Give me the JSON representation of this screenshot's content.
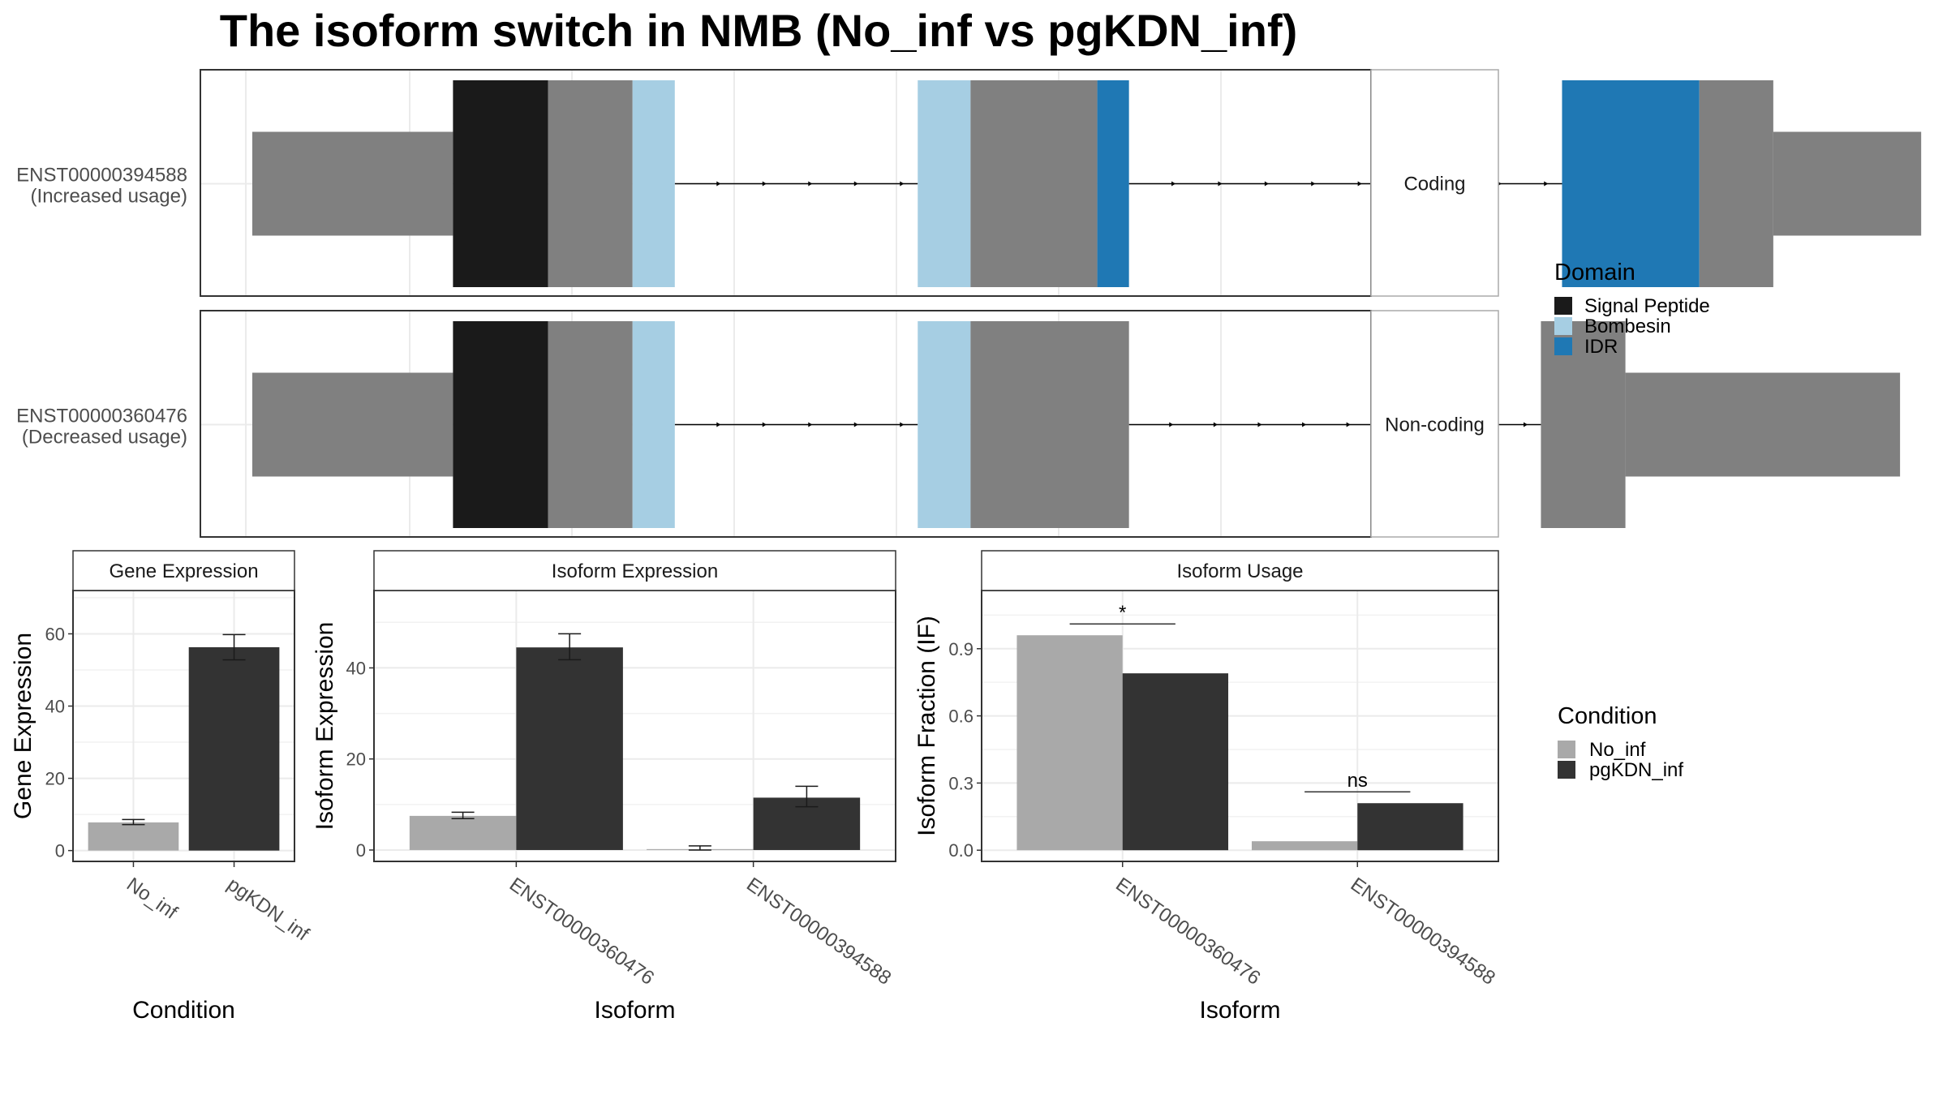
{
  "title": "The isoform switch in NMB (No_inf vs pgKDN_inf)",
  "colors": {
    "exon": "#808080",
    "signal_peptide": "#1a1a1a",
    "bombesin": "#a6cee3",
    "idr": "#1f78b4",
    "no_inf": "#a9a9a9",
    "pgkdn_inf": "#333333"
  },
  "structure": {
    "tracks": [
      {
        "id": "ENST00000394588",
        "label_line1": "ENST00000394588",
        "label_line2": "(Increased usage)",
        "strip": "Coding",
        "exons": [
          {
            "start": 0.0,
            "end": 0.19,
            "coding": false
          },
          {
            "start": 0.19,
            "end": 0.28,
            "coding": true,
            "domain": "signal_peptide"
          },
          {
            "start": 0.28,
            "end": 0.36,
            "coding": true
          },
          {
            "start": 0.36,
            "end": 0.4,
            "coding": true,
            "domain": "bombesin"
          },
          {
            "start": 0.63,
            "end": 0.68,
            "coding": true,
            "domain": "bombesin"
          },
          {
            "start": 0.68,
            "end": 0.8,
            "coding": true
          },
          {
            "start": 0.8,
            "end": 0.83,
            "coding": true,
            "domain": "idr"
          },
          {
            "start": 1.24,
            "end": 1.37,
            "coding": true,
            "domain": "idr"
          },
          {
            "start": 1.37,
            "end": 1.44,
            "coding": true
          },
          {
            "start": 1.44,
            "end": 1.58,
            "coding": false
          }
        ]
      },
      {
        "id": "ENST00000360476",
        "label_line1": "ENST00000360476",
        "label_line2": "(Decreased usage)",
        "strip": "Non-coding",
        "exons": [
          {
            "start": 0.0,
            "end": 0.19,
            "coding": false
          },
          {
            "start": 0.19,
            "end": 0.28,
            "coding": true,
            "domain": "signal_peptide"
          },
          {
            "start": 0.28,
            "end": 0.36,
            "coding": true
          },
          {
            "start": 0.36,
            "end": 0.4,
            "coding": true,
            "domain": "bombesin"
          },
          {
            "start": 0.63,
            "end": 0.68,
            "coding": true,
            "domain": "bombesin"
          },
          {
            "start": 0.68,
            "end": 0.83,
            "coding": true
          },
          {
            "start": 1.22,
            "end": 1.3,
            "coding": true
          },
          {
            "start": 1.3,
            "end": 1.56,
            "coding": false
          }
        ]
      }
    ]
  },
  "domain_legend": {
    "title": "Domain",
    "items": [
      {
        "label": "Signal Peptide",
        "color": "#1a1a1a"
      },
      {
        "label": "Bombesin",
        "color": "#a6cee3"
      },
      {
        "label": "IDR",
        "color": "#1f78b4"
      }
    ]
  },
  "condition_legend": {
    "title": "Condition",
    "items": [
      {
        "label": "No_inf",
        "color": "#a9a9a9"
      },
      {
        "label": "pgKDN_inf",
        "color": "#333333"
      }
    ]
  },
  "chart_data": [
    {
      "type": "bar",
      "title": "Gene Expression",
      "xlabel": "Condition",
      "ylabel": "Gene Expression",
      "categories": [
        "No_inf",
        "pgKDN_inf"
      ],
      "values": [
        7.8,
        56.3
      ],
      "errors": [
        [
          7.2,
          8.6
        ],
        [
          52.8,
          59.8
        ]
      ],
      "ylim": [
        -3,
        72
      ],
      "yticks": [
        0,
        20,
        40,
        60
      ],
      "grid": true
    },
    {
      "type": "bar",
      "title": "Isoform Expression",
      "xlabel": "Isoform",
      "ylabel": "Isoform Expression",
      "categories": [
        "ENST00000360476",
        "ENST00000394588"
      ],
      "series": [
        {
          "name": "No_inf",
          "values": [
            7.5,
            0.2
          ],
          "errors": [
            [
              6.9,
              8.3
            ],
            [
              0.0,
              0.9
            ]
          ]
        },
        {
          "name": "pgKDN_inf",
          "values": [
            44.5,
            11.5
          ],
          "errors": [
            [
              41.8,
              47.5
            ],
            [
              9.5,
              14.0
            ]
          ]
        }
      ],
      "ylim": [
        -2.5,
        57
      ],
      "yticks": [
        0,
        20,
        40
      ],
      "grid": true
    },
    {
      "type": "bar",
      "title": "Isoform Usage",
      "xlabel": "Isoform",
      "ylabel": "Isoform Fraction (IF)",
      "categories": [
        "ENST00000360476",
        "ENST00000394588"
      ],
      "series": [
        {
          "name": "No_inf",
          "values": [
            0.96,
            0.04
          ]
        },
        {
          "name": "pgKDN_inf",
          "values": [
            0.79,
            0.21
          ]
        }
      ],
      "significance": [
        "*",
        "ns"
      ],
      "ylim": [
        -0.05,
        1.16
      ],
      "yticks": [
        0.0,
        0.3,
        0.6,
        0.9
      ],
      "yticklabels": [
        "0.0",
        "0.3",
        "0.6",
        "0.9"
      ],
      "grid": true
    }
  ]
}
